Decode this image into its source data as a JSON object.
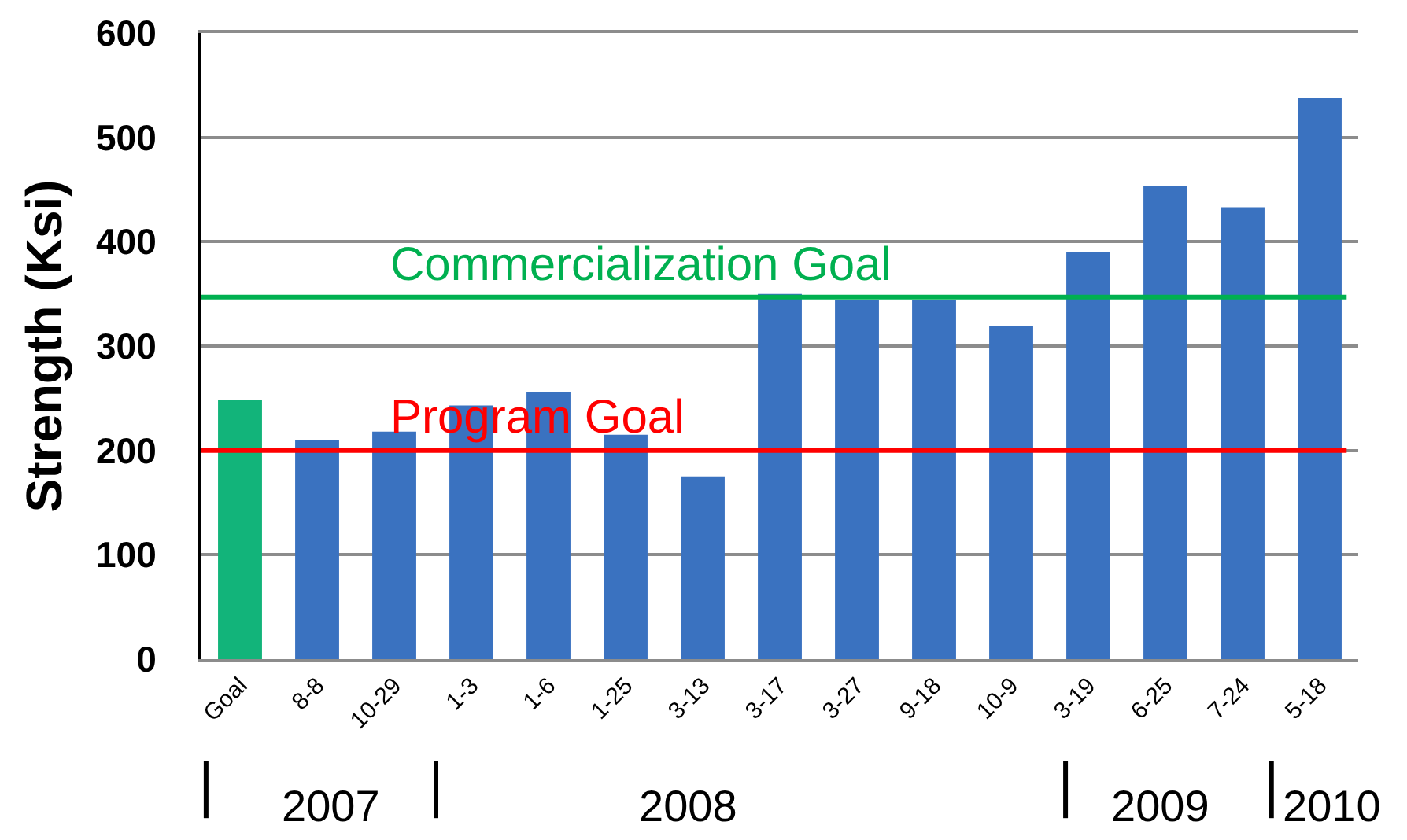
{
  "chart_data": {
    "type": "bar",
    "categories": [
      "Goal",
      "8-8",
      "10-29",
      "1-3",
      "1-6",
      "1-25",
      "3-13",
      "3-17",
      "3-27",
      "9-18",
      "10-9",
      "3-19",
      "6-25",
      "7-24",
      "5-18"
    ],
    "values": [
      248,
      210,
      218,
      243,
      256,
      215,
      175,
      350,
      344,
      344,
      319,
      390,
      453,
      433,
      538
    ],
    "colors": [
      "#12b47a",
      "#3a72c0",
      "#3a72c0",
      "#3a72c0",
      "#3a72c0",
      "#3a72c0",
      "#3a72c0",
      "#3a72c0",
      "#3a72c0",
      "#3a72c0",
      "#3a72c0",
      "#3a72c0",
      "#3a72c0",
      "#3a72c0",
      "#3a72c0"
    ],
    "ylabel": "Strength (Ksi)",
    "ylim": [
      0,
      600
    ],
    "yticks": [
      0,
      100,
      200,
      300,
      400,
      500,
      600
    ],
    "grid": "y",
    "ref_lines": [
      {
        "axis": "y",
        "value": 347,
        "label": "Commercialization Goal",
        "color": "#00b050"
      },
      {
        "axis": "y",
        "value": 200,
        "label": "Program Goal",
        "color": "#ff0000"
      }
    ],
    "annotations": [
      "2007",
      "2008",
      "2009",
      "2010"
    ]
  }
}
